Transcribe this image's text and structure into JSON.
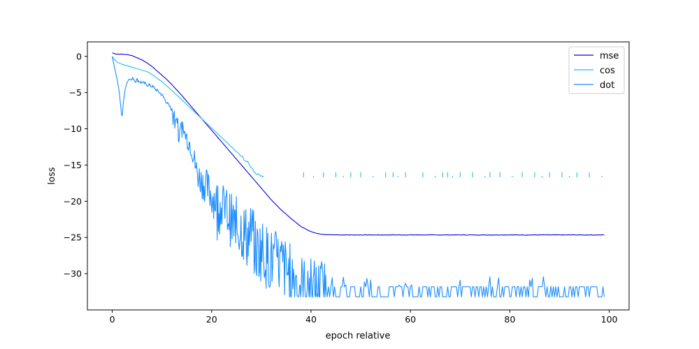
{
  "chart_data": {
    "type": "line",
    "title": "",
    "xlabel": "epoch relative",
    "ylabel": "loss",
    "xlim": [
      -5,
      104
    ],
    "ylim": [
      -35,
      2
    ],
    "xticks": [
      0,
      20,
      40,
      60,
      80,
      100
    ],
    "yticks": [
      0,
      -5,
      -10,
      -15,
      -20,
      -25,
      -30
    ],
    "legend_position": "top-right",
    "grid": false,
    "series": [
      {
        "name": "mse",
        "color": "#0000dd",
        "x": [
          0,
          0.5,
          1,
          2,
          3,
          4,
          5,
          6,
          7,
          8,
          9,
          10,
          11,
          12,
          14,
          16,
          18,
          20,
          22,
          24,
          26,
          28,
          30,
          32,
          34,
          36,
          38,
          40,
          41,
          42,
          43,
          44,
          45,
          46,
          48,
          50,
          60,
          70,
          80,
          90,
          99
        ],
        "y": [
          0.5,
          0.35,
          0.3,
          0.3,
          0.25,
          0.1,
          -0.2,
          -0.5,
          -0.9,
          -1.4,
          -2.0,
          -2.6,
          -3.2,
          -3.9,
          -5.4,
          -7.0,
          -8.6,
          -10.2,
          -11.8,
          -13.4,
          -15.0,
          -16.6,
          -18.2,
          -19.8,
          -21.2,
          -22.4,
          -23.5,
          -24.2,
          -24.4,
          -24.55,
          -24.6,
          -24.62,
          -24.63,
          -24.65,
          -24.65,
          -24.65,
          -24.65,
          -24.65,
          -24.65,
          -24.65,
          -24.65
        ]
      },
      {
        "name": "cos",
        "color": "#22bbee",
        "x": [
          0,
          0.5,
          1,
          2,
          3,
          4,
          5,
          6,
          7,
          8,
          9,
          10,
          12,
          14,
          16,
          18,
          20,
          22,
          24,
          26,
          27,
          28,
          28.5,
          29,
          29.5,
          30,
          30.5
        ],
        "y": [
          0,
          -0.5,
          -0.8,
          -1.1,
          -1.3,
          -1.5,
          -1.7,
          -1.9,
          -2.1,
          -2.5,
          -3.0,
          -3.5,
          -4.7,
          -6.0,
          -7.3,
          -8.6,
          -9.9,
          -11.2,
          -12.5,
          -13.8,
          -14.5,
          -15.2,
          -15.8,
          -16.3,
          -16.0,
          -16.6,
          -16.6
        ],
        "sparse": [
          38.5,
          40.5,
          42.5,
          45,
          46.5,
          48,
          50,
          52.5,
          55,
          56.5,
          57.5,
          59,
          62.5,
          65,
          66.5,
          67.5,
          68.5,
          70,
          72.5,
          75,
          76,
          78,
          80.5,
          82.5,
          85,
          86.5,
          88,
          90.5,
          92,
          93.5,
          96,
          98.5
        ]
      },
      {
        "name": "dot",
        "color": "#1a8cff",
        "x": [
          0,
          0.3,
          0.6,
          1.0,
          1.4,
          1.8,
          2.0,
          2.2,
          2.6,
          3.0,
          3.4,
          3.8,
          4.2,
          4.6,
          5.0,
          5.5,
          6,
          7,
          8,
          9,
          10,
          11,
          12,
          13,
          14,
          15,
          16,
          17,
          18,
          19,
          20,
          21,
          22,
          23,
          24,
          25,
          26,
          27,
          28,
          29,
          30,
          31,
          32,
          33,
          34,
          35,
          36,
          37,
          38,
          39,
          40,
          41,
          42,
          43
        ],
        "y": [
          0,
          -1.0,
          -2.0,
          -3.2,
          -4.8,
          -7.5,
          -8.6,
          -6.5,
          -4.5,
          -3.6,
          -3.1,
          -3.3,
          -3.0,
          -3.4,
          -3.2,
          -3.5,
          -3.6,
          -3.9,
          -4.1,
          -4.7,
          -5.3,
          -6.4,
          -7.4,
          -8.6,
          -10.0,
          -11.2,
          -12.5,
          -16.0,
          -17.3,
          -18.0,
          -19.2,
          -20.0,
          -20.8,
          -21.3,
          -22.8,
          -23.5,
          -23.7,
          -25.0,
          -24.6,
          -27.0,
          -26.5,
          -27.6,
          -28.2,
          -28.4,
          -28.7,
          -29.6,
          -30.3,
          -30.6,
          -31.5,
          -32.3,
          -31.9,
          -32.5,
          -32.2,
          -32.6
        ],
        "plateau": [
          -31.8,
          -33.2
        ]
      }
    ]
  }
}
